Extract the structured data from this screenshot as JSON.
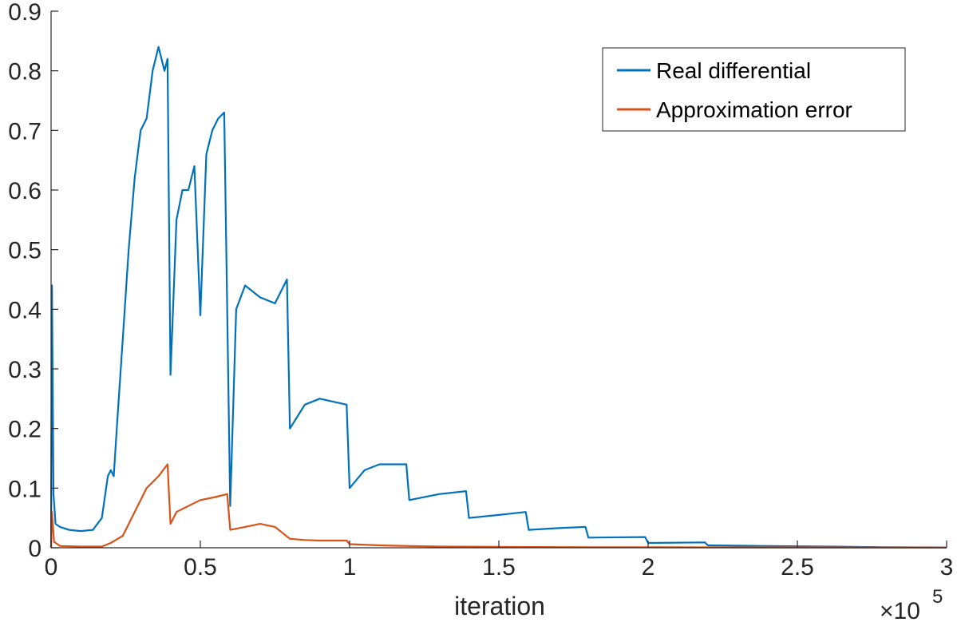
{
  "chart_data": {
    "type": "line",
    "title": "",
    "xlabel": "iteration",
    "ylabel": "",
    "x_exponent_label": "×10",
    "x_exponent_power": "5",
    "xlim": [
      0,
      3
    ],
    "ylim": [
      0,
      0.9
    ],
    "x_ticks": [
      0,
      0.5,
      1,
      1.5,
      2,
      2.5,
      3
    ],
    "x_tick_labels": [
      "0",
      "0.5",
      "1",
      "1.5",
      "2",
      "2.5",
      "3"
    ],
    "y_ticks": [
      0,
      0.1,
      0.2,
      0.3,
      0.4,
      0.5,
      0.6,
      0.7,
      0.8,
      0.9
    ],
    "y_tick_labels": [
      "0",
      "0.1",
      "0.2",
      "0.3",
      "0.4",
      "0.5",
      "0.6",
      "0.7",
      "0.8",
      "0.9"
    ],
    "grid": false,
    "legend_position": "top-right",
    "series": [
      {
        "name": "Real differential",
        "color": "#0072BD",
        "x": [
          0,
          0.003,
          0.008,
          0.015,
          0.03,
          0.06,
          0.1,
          0.14,
          0.17,
          0.19,
          0.2,
          0.21,
          0.22,
          0.24,
          0.26,
          0.28,
          0.3,
          0.32,
          0.34,
          0.36,
          0.38,
          0.39,
          0.4,
          0.42,
          0.44,
          0.46,
          0.48,
          0.5,
          0.52,
          0.54,
          0.56,
          0.58,
          0.6,
          0.62,
          0.65,
          0.7,
          0.75,
          0.79,
          0.8,
          0.85,
          0.9,
          0.99,
          1.0,
          1.05,
          1.1,
          1.19,
          1.2,
          1.3,
          1.39,
          1.4,
          1.5,
          1.59,
          1.6,
          1.7,
          1.79,
          1.8,
          1.99,
          2.0,
          2.19,
          2.2,
          2.4,
          2.6,
          2.8,
          3.0
        ],
        "y": [
          0.0,
          0.44,
          0.09,
          0.04,
          0.035,
          0.03,
          0.028,
          0.03,
          0.05,
          0.12,
          0.13,
          0.12,
          0.2,
          0.35,
          0.5,
          0.62,
          0.7,
          0.72,
          0.8,
          0.84,
          0.8,
          0.82,
          0.29,
          0.55,
          0.6,
          0.6,
          0.64,
          0.39,
          0.66,
          0.7,
          0.72,
          0.73,
          0.07,
          0.4,
          0.44,
          0.42,
          0.41,
          0.45,
          0.2,
          0.24,
          0.25,
          0.24,
          0.1,
          0.13,
          0.14,
          0.14,
          0.08,
          0.09,
          0.095,
          0.05,
          0.055,
          0.06,
          0.03,
          0.033,
          0.035,
          0.017,
          0.018,
          0.008,
          0.009,
          0.004,
          0.003,
          0.002,
          0.001,
          0.0005
        ]
      },
      {
        "name": "Approximation error",
        "color": "#D95319",
        "x": [
          0,
          0.003,
          0.01,
          0.03,
          0.1,
          0.17,
          0.2,
          0.24,
          0.28,
          0.32,
          0.36,
          0.39,
          0.4,
          0.42,
          0.46,
          0.5,
          0.55,
          0.59,
          0.6,
          0.65,
          0.7,
          0.75,
          0.8,
          0.85,
          0.9,
          0.99,
          1.0,
          1.1,
          1.2,
          1.3,
          1.5,
          1.8,
          2.0,
          2.5,
          3.0
        ],
        "y": [
          0.0,
          0.06,
          0.01,
          0.003,
          0.002,
          0.002,
          0.008,
          0.02,
          0.06,
          0.1,
          0.12,
          0.14,
          0.04,
          0.06,
          0.07,
          0.08,
          0.085,
          0.09,
          0.03,
          0.035,
          0.04,
          0.035,
          0.015,
          0.013,
          0.012,
          0.012,
          0.006,
          0.004,
          0.003,
          0.002,
          0.0015,
          0.001,
          0.0008,
          0.0005,
          0.0003
        ]
      }
    ]
  }
}
